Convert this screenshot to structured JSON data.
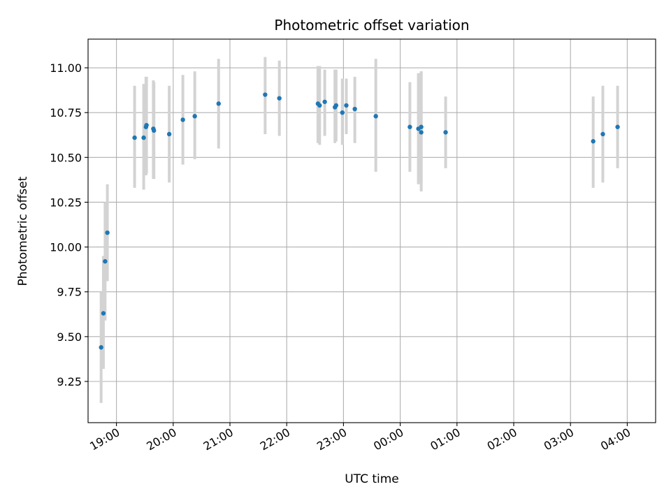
{
  "chart_data": {
    "type": "scatter",
    "title": "Photometric offset variation",
    "xlabel": "UTC time",
    "ylabel": "Photometric offset",
    "x_unit": "UTC time of day (hours; values past 24 are after midnight)",
    "xlim": [
      18.5,
      28.5
    ],
    "ylim": [
      9.02,
      11.16
    ],
    "x_ticks": [
      {
        "value": 19,
        "label": "19:00"
      },
      {
        "value": 20,
        "label": "20:00"
      },
      {
        "value": 21,
        "label": "21:00"
      },
      {
        "value": 22,
        "label": "22:00"
      },
      {
        "value": 23,
        "label": "23:00"
      },
      {
        "value": 24,
        "label": "00:00"
      },
      {
        "value": 25,
        "label": "01:00"
      },
      {
        "value": 26,
        "label": "02:00"
      },
      {
        "value": 27,
        "label": "03:00"
      },
      {
        "value": 28,
        "label": "04:00"
      }
    ],
    "y_ticks": [
      {
        "value": 9.25,
        "label": "9.25"
      },
      {
        "value": 9.5,
        "label": "9.50"
      },
      {
        "value": 9.75,
        "label": "9.75"
      },
      {
        "value": 10.0,
        "label": "10.00"
      },
      {
        "value": 10.25,
        "label": "10.25"
      },
      {
        "value": 10.5,
        "label": "10.50"
      },
      {
        "value": 10.75,
        "label": "10.75"
      },
      {
        "value": 11.0,
        "label": "11.00"
      }
    ],
    "grid": true,
    "marker_color": "#1f77b4",
    "errorbar_color": "#d3d3d3",
    "points": [
      {
        "x": 18.73,
        "y": 9.44,
        "low": 9.13,
        "high": 9.75
      },
      {
        "x": 18.77,
        "y": 9.63,
        "low": 9.32,
        "high": 9.95
      },
      {
        "x": 18.8,
        "y": 9.92,
        "low": 9.59,
        "high": 10.25
      },
      {
        "x": 18.84,
        "y": 10.08,
        "low": 9.81,
        "high": 10.35
      },
      {
        "x": 19.32,
        "y": 10.61,
        "low": 10.33,
        "high": 10.9
      },
      {
        "x": 19.48,
        "y": 10.61,
        "low": 10.32,
        "high": 10.91
      },
      {
        "x": 19.52,
        "y": 10.67,
        "low": 10.4,
        "high": 10.95
      },
      {
        "x": 19.53,
        "y": 10.68,
        "low": 10.41,
        "high": 10.95
      },
      {
        "x": 19.65,
        "y": 10.66,
        "low": 10.38,
        "high": 10.93
      },
      {
        "x": 19.66,
        "y": 10.65,
        "low": 10.38,
        "high": 10.92
      },
      {
        "x": 19.93,
        "y": 10.63,
        "low": 10.36,
        "high": 10.9
      },
      {
        "x": 20.17,
        "y": 10.71,
        "low": 10.46,
        "high": 10.96
      },
      {
        "x": 20.38,
        "y": 10.73,
        "low": 10.49,
        "high": 10.98
      },
      {
        "x": 20.8,
        "y": 10.8,
        "low": 10.55,
        "high": 11.05
      },
      {
        "x": 21.62,
        "y": 10.85,
        "low": 10.63,
        "high": 11.06
      },
      {
        "x": 21.87,
        "y": 10.83,
        "low": 10.62,
        "high": 11.04
      },
      {
        "x": 22.55,
        "y": 10.8,
        "low": 10.58,
        "high": 11.01
      },
      {
        "x": 22.58,
        "y": 10.79,
        "low": 10.57,
        "high": 11.01
      },
      {
        "x": 22.67,
        "y": 10.81,
        "low": 10.62,
        "high": 10.99
      },
      {
        "x": 22.85,
        "y": 10.78,
        "low": 10.58,
        "high": 10.99
      },
      {
        "x": 22.87,
        "y": 10.79,
        "low": 10.59,
        "high": 10.99
      },
      {
        "x": 22.98,
        "y": 10.75,
        "low": 10.57,
        "high": 10.94
      },
      {
        "x": 23.05,
        "y": 10.79,
        "low": 10.63,
        "high": 10.94
      },
      {
        "x": 23.2,
        "y": 10.77,
        "low": 10.58,
        "high": 10.95
      },
      {
        "x": 23.57,
        "y": 10.73,
        "low": 10.42,
        "high": 11.05
      },
      {
        "x": 24.17,
        "y": 10.67,
        "low": 10.42,
        "high": 10.92
      },
      {
        "x": 24.32,
        "y": 10.66,
        "low": 10.35,
        "high": 10.97
      },
      {
        "x": 24.37,
        "y": 10.67,
        "low": 10.36,
        "high": 10.98
      },
      {
        "x": 24.37,
        "y": 10.64,
        "low": 10.31,
        "high": 10.98
      },
      {
        "x": 24.8,
        "y": 10.64,
        "low": 10.44,
        "high": 10.84
      },
      {
        "x": 27.4,
        "y": 10.59,
        "low": 10.33,
        "high": 10.84
      },
      {
        "x": 27.57,
        "y": 10.63,
        "low": 10.36,
        "high": 10.9
      },
      {
        "x": 27.83,
        "y": 10.67,
        "low": 10.44,
        "high": 10.9
      }
    ]
  }
}
